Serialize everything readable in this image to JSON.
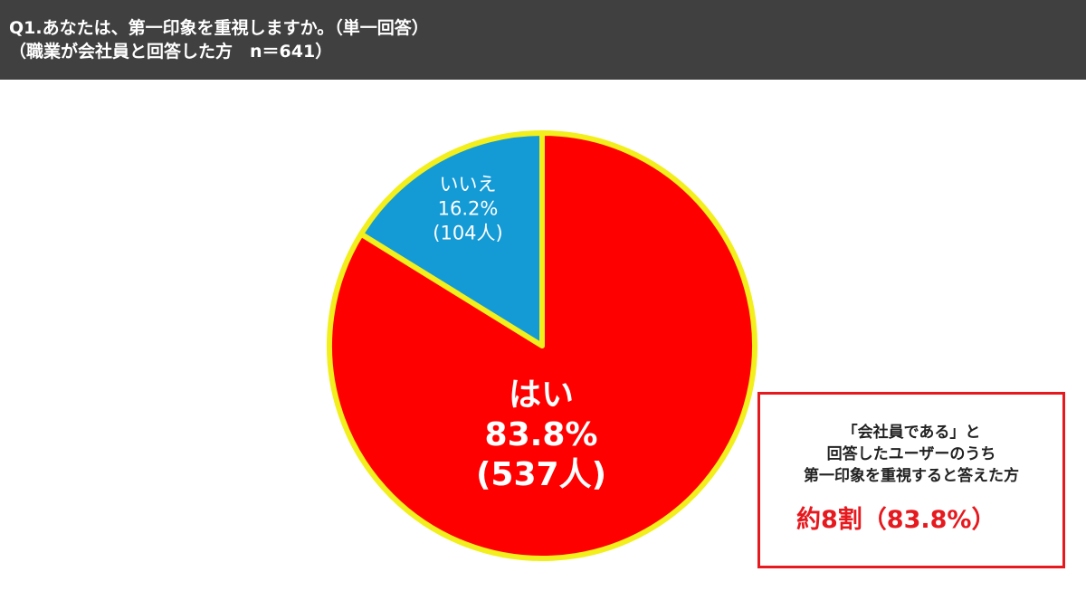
{
  "header": {
    "line1": "Q1.あなたは、第一印象を重視しますか。（単一回答）",
    "line2": "（職業が会社員と回答した方　n＝641）"
  },
  "chart_data": {
    "type": "pie",
    "start_angle_deg": 0,
    "direction": "clockwise",
    "slices": [
      {
        "label": "はい",
        "percent_text": "83.8%",
        "count_text": "(537人)",
        "value": 83.8,
        "count": 537,
        "color": "#fe0000"
      },
      {
        "label": "いいえ",
        "percent_text": "16.2%",
        "count_text": "(104人)",
        "value": 16.2,
        "count": 104,
        "color": "#149bd6"
      }
    ],
    "slice_border_color": "#f2ef1c",
    "total_n": 641
  },
  "callout": {
    "line1": "「会社員である」と",
    "line2": "回答したユーザーのうち",
    "line3": "第一印象を重視すると答えた方",
    "highlight": "約8割（83.8%）",
    "border_color": "#e5191e",
    "highlight_color": "#e5191e"
  }
}
